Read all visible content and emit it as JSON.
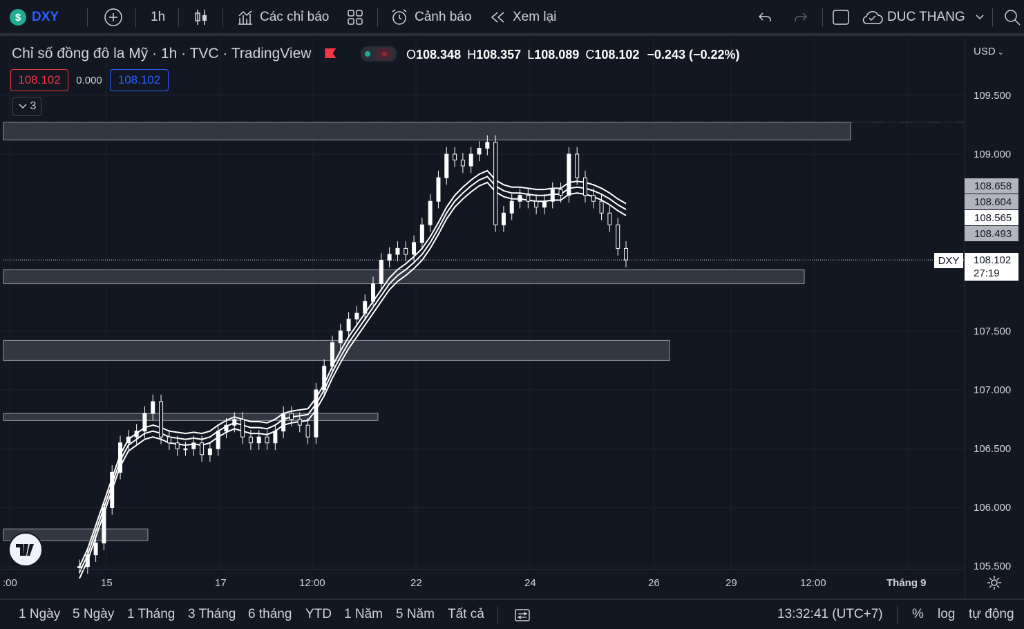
{
  "toolbar": {
    "symbol": "DXY",
    "interval": "1h",
    "indicators_label": "Các chỉ báo",
    "alert_label": "Cảnh báo",
    "replay_label": "Xem lại",
    "user_name": "DUC THANG",
    "icons": [
      "dollar-icon",
      "add-icon",
      "candles-icon",
      "indicators-icon",
      "layout-icon",
      "alarm-icon",
      "replay-icon",
      "undo-icon",
      "redo-icon",
      "fullscreen-icon",
      "cloud-icon",
      "chevron-down-icon",
      "search-icon"
    ]
  },
  "legend": {
    "title": "Chỉ số đồng đô la Mỹ · 1h · TVC · TradingView",
    "open_label": "O",
    "open": "108.348",
    "high_label": "H",
    "high": "108.357",
    "low_label": "L",
    "low": "108.089",
    "close_label": "C",
    "close": "108.102",
    "change": "−0.243 (−0.22%)",
    "bid": "108.102",
    "spread": "0.000",
    "ask": "108.102",
    "collapse_count": "3"
  },
  "price_axis": {
    "currency": "USD",
    "labels": [
      "109.500",
      "109.000",
      "107.500",
      "107.000",
      "106.500",
      "106.000",
      "105.500"
    ],
    "tags": [
      "108.658",
      "108.604",
      "108.565",
      "108.493"
    ],
    "last_symbol": "DXY",
    "last_price": "108.102",
    "countdown": "27:19"
  },
  "time_axis": {
    "labels": [
      ":00",
      "15",
      "17",
      "12:00",
      "22",
      "24",
      "26",
      "29",
      "12:00",
      "Tháng 9"
    ]
  },
  "bottom": {
    "ranges": [
      "1 Ngày",
      "5 Ngày",
      "1 Tháng",
      "3 Tháng",
      "6 tháng",
      "YTD",
      "1 Năm",
      "5 Năm",
      "Tất cả"
    ],
    "clock": "13:32:41 (UTC+7)",
    "percent": "%",
    "log": "log",
    "auto": "tự động"
  },
  "colors": {
    "background": "#131722",
    "accent_blue": "#2962ff",
    "bid_red": "#f23645",
    "zone": "#3a3d47",
    "line_white": "#ffffff"
  },
  "chart_data": {
    "type": "candlestick",
    "x_labels": [
      ":00",
      "15",
      "17",
      "12:00",
      "22",
      "24",
      "26",
      "29",
      "12:00",
      "Tháng 9"
    ],
    "y_ticks": [
      109.5,
      109.0,
      107.5,
      107.0,
      106.5,
      106.0,
      105.5
    ],
    "ylim": [
      105.5,
      109.8
    ],
    "series": [
      {
        "name": "close",
        "values": [
          105.5,
          105.6,
          105.7,
          106.0,
          106.3,
          106.55,
          106.6,
          106.65,
          106.8,
          106.9,
          106.6,
          106.55,
          106.5,
          106.5,
          106.55,
          106.45,
          106.5,
          106.65,
          106.7,
          106.75,
          106.6,
          106.55,
          106.6,
          106.55,
          106.65,
          106.8,
          106.75,
          106.7,
          106.6,
          107.0,
          107.2,
          107.4,
          107.5,
          107.6,
          107.65,
          107.75,
          107.9,
          108.1,
          108.15,
          108.2,
          108.15,
          108.25,
          108.4,
          108.6,
          108.8,
          109.0,
          108.95,
          108.9,
          109.0,
          109.05,
          109.1,
          108.4,
          108.5,
          108.6,
          108.65,
          108.6,
          108.55,
          108.6,
          108.7,
          108.65,
          109.0,
          108.8,
          108.65,
          108.6,
          108.5,
          108.4,
          108.2,
          108.102
        ]
      },
      {
        "name": "ma_upper",
        "values": [
          105.5,
          105.65,
          105.85,
          106.05,
          106.25,
          106.45,
          106.58,
          106.63,
          106.68,
          106.7,
          106.68,
          106.65,
          106.64,
          106.63,
          106.64,
          106.63,
          106.65,
          106.7,
          106.74,
          106.77,
          106.75,
          106.73,
          106.73,
          106.72,
          106.75,
          106.8,
          106.82,
          106.83,
          106.84,
          106.93,
          107.05,
          107.2,
          107.33,
          107.45,
          107.55,
          107.65,
          107.75,
          107.85,
          107.95,
          108.02,
          108.07,
          108.13,
          108.2,
          108.3,
          108.42,
          108.55,
          108.65,
          108.72,
          108.78,
          108.83,
          108.86,
          108.78,
          108.74,
          108.72,
          108.72,
          108.71,
          108.7,
          108.7,
          108.71,
          108.71,
          108.76,
          108.77,
          108.76,
          108.74,
          108.71,
          108.67,
          108.62,
          108.58
        ]
      },
      {
        "name": "ma_mid",
        "values": [
          105.45,
          105.6,
          105.8,
          106.0,
          106.2,
          106.4,
          106.53,
          106.58,
          106.63,
          106.65,
          106.63,
          106.6,
          106.59,
          106.58,
          106.59,
          106.58,
          106.6,
          106.65,
          106.69,
          106.72,
          106.7,
          106.68,
          106.68,
          106.67,
          106.7,
          106.75,
          106.77,
          106.78,
          106.79,
          106.88,
          107.0,
          107.15,
          107.28,
          107.4,
          107.5,
          107.6,
          107.7,
          107.8,
          107.9,
          107.97,
          108.02,
          108.08,
          108.15,
          108.25,
          108.37,
          108.5,
          108.6,
          108.67,
          108.73,
          108.78,
          108.81,
          108.73,
          108.69,
          108.67,
          108.67,
          108.66,
          108.65,
          108.65,
          108.66,
          108.66,
          108.71,
          108.72,
          108.71,
          108.69,
          108.66,
          108.62,
          108.57,
          108.53
        ]
      },
      {
        "name": "ma_lower",
        "values": [
          105.4,
          105.55,
          105.75,
          105.95,
          106.15,
          106.35,
          106.48,
          106.53,
          106.58,
          106.6,
          106.58,
          106.55,
          106.54,
          106.53,
          106.54,
          106.53,
          106.55,
          106.6,
          106.64,
          106.67,
          106.65,
          106.63,
          106.63,
          106.62,
          106.65,
          106.7,
          106.72,
          106.73,
          106.74,
          106.83,
          106.95,
          107.1,
          107.23,
          107.35,
          107.45,
          107.55,
          107.65,
          107.75,
          107.85,
          107.92,
          107.97,
          108.03,
          108.1,
          108.2,
          108.32,
          108.45,
          108.55,
          108.62,
          108.68,
          108.73,
          108.76,
          108.68,
          108.64,
          108.62,
          108.62,
          108.61,
          108.6,
          108.6,
          108.61,
          108.61,
          108.66,
          108.67,
          108.66,
          108.64,
          108.61,
          108.57,
          108.52,
          108.48
        ]
      }
    ],
    "zones": [
      {
        "from": 109.12,
        "to": 109.27
      },
      {
        "from": 107.9,
        "to": 108.02
      },
      {
        "from": 107.25,
        "to": 107.42
      },
      {
        "from": 106.74,
        "to": 106.8
      },
      {
        "from": 105.72,
        "to": 105.82
      }
    ],
    "last_price": 108.102,
    "grid": true,
    "legend": "top-left"
  }
}
